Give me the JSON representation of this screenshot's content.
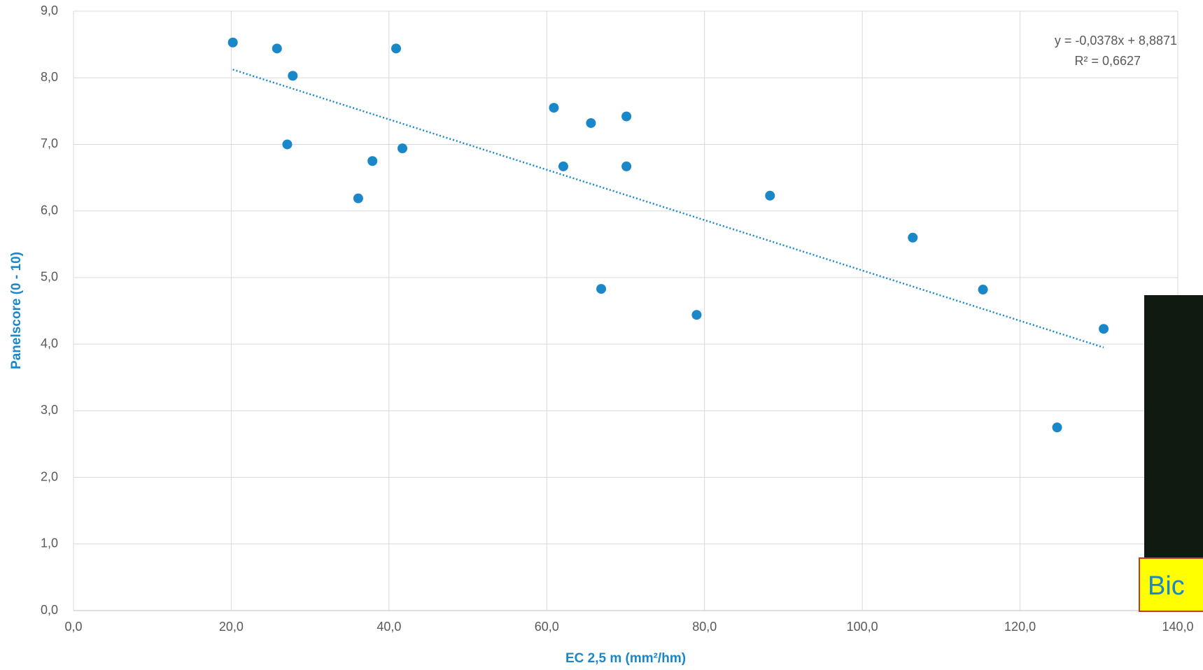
{
  "chart_data": {
    "type": "scatter",
    "x_label": "EC 2,5 m (mm²/hm)",
    "y_label": "Panelscore (0 - 10)",
    "color": "#1a87c9",
    "grid": true,
    "x": [
      20.2,
      25.8,
      27.8,
      27.1,
      36.1,
      37.9,
      40.9,
      41.7,
      60.9,
      62.1,
      65.6,
      66.9,
      70.1,
      70.1,
      79.0,
      88.3,
      106.4,
      115.3,
      124.7,
      130.6
    ],
    "values": [
      8.53,
      8.44,
      8.03,
      7.0,
      6.19,
      6.75,
      8.44,
      6.94,
      7.55,
      6.67,
      7.32,
      4.83,
      7.42,
      6.67,
      4.44,
      6.23,
      5.6,
      4.82,
      2.75,
      4.23
    ],
    "xlim": [
      0,
      140
    ],
    "ylim": [
      0,
      9
    ],
    "xticks": [
      {
        "value": 0,
        "label": "0,0"
      },
      {
        "value": 20,
        "label": "20,0"
      },
      {
        "value": 40,
        "label": "40,0"
      },
      {
        "value": 60,
        "label": "60,0"
      },
      {
        "value": 80,
        "label": "80,0"
      },
      {
        "value": 100,
        "label": "100,0"
      },
      {
        "value": 120,
        "label": "120,0"
      },
      {
        "value": 140,
        "label": "140,0"
      }
    ],
    "yticks": [
      {
        "value": 0,
        "label": "0,0"
      },
      {
        "value": 1,
        "label": "1,0"
      },
      {
        "value": 2,
        "label": "2,0"
      },
      {
        "value": 3,
        "label": "3,0"
      },
      {
        "value": 4,
        "label": "4,0"
      },
      {
        "value": 5,
        "label": "5,0"
      },
      {
        "value": 6,
        "label": "6,0"
      },
      {
        "value": 7,
        "label": "7,0"
      },
      {
        "value": 8,
        "label": "8,0"
      },
      {
        "value": 9,
        "label": "9,0"
      }
    ],
    "trendline": {
      "equation": "y = -0,0378x + 8,8871",
      "r_squared": "R² = 0,6627",
      "slope": -0.0378,
      "intercept": 8.8871,
      "color": "#1a87c9"
    }
  },
  "photo_caption": "Bic"
}
